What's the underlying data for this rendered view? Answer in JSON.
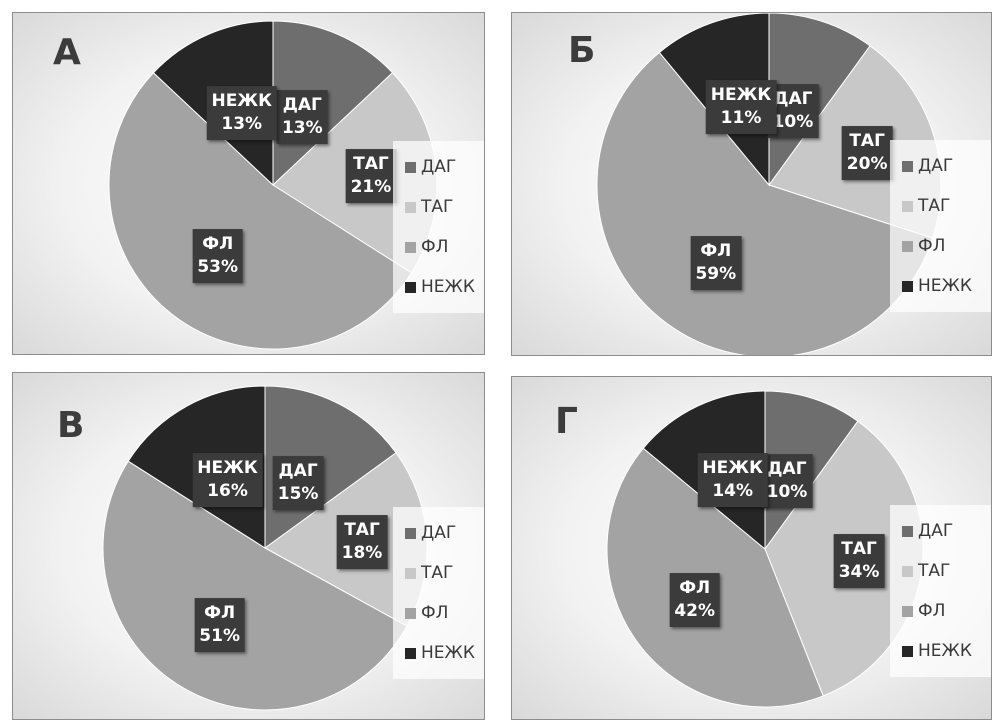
{
  "colors": {
    "ДАГ": "#6e6e6e",
    "ТАГ": "#c8c8c8",
    "ФЛ": "#a3a3a3",
    "НЕЖК": "#262626"
  },
  "chart_data": [
    {
      "type": "pie",
      "panel_label": "А",
      "legend_position": "right",
      "categories": [
        "ДАГ",
        "ТАГ",
        "ФЛ",
        "НЕЖК"
      ],
      "values": [
        13,
        21,
        53,
        13
      ],
      "value_labels": [
        "13%",
        "21%",
        "53%",
        "13%"
      ]
    },
    {
      "type": "pie",
      "panel_label": "Б",
      "legend_position": "right",
      "categories": [
        "ДАГ",
        "ТАГ",
        "ФЛ",
        "НЕЖК"
      ],
      "values": [
        10,
        20,
        59,
        11
      ],
      "value_labels": [
        "10%",
        "20%",
        "59%",
        "11%"
      ]
    },
    {
      "type": "pie",
      "panel_label": "В",
      "legend_position": "right",
      "categories": [
        "ДАГ",
        "ТАГ",
        "ФЛ",
        "НЕЖК"
      ],
      "values": [
        15,
        18,
        51,
        16
      ],
      "value_labels": [
        "15%",
        "18%",
        "51%",
        "16%"
      ]
    },
    {
      "type": "pie",
      "panel_label": "Г",
      "legend_position": "right",
      "categories": [
        "ДАГ",
        "ТАГ",
        "ФЛ",
        "НЕЖК"
      ],
      "values": [
        10,
        34,
        42,
        14
      ],
      "value_labels": [
        "10%",
        "34%",
        "42%",
        "14%"
      ]
    }
  ]
}
